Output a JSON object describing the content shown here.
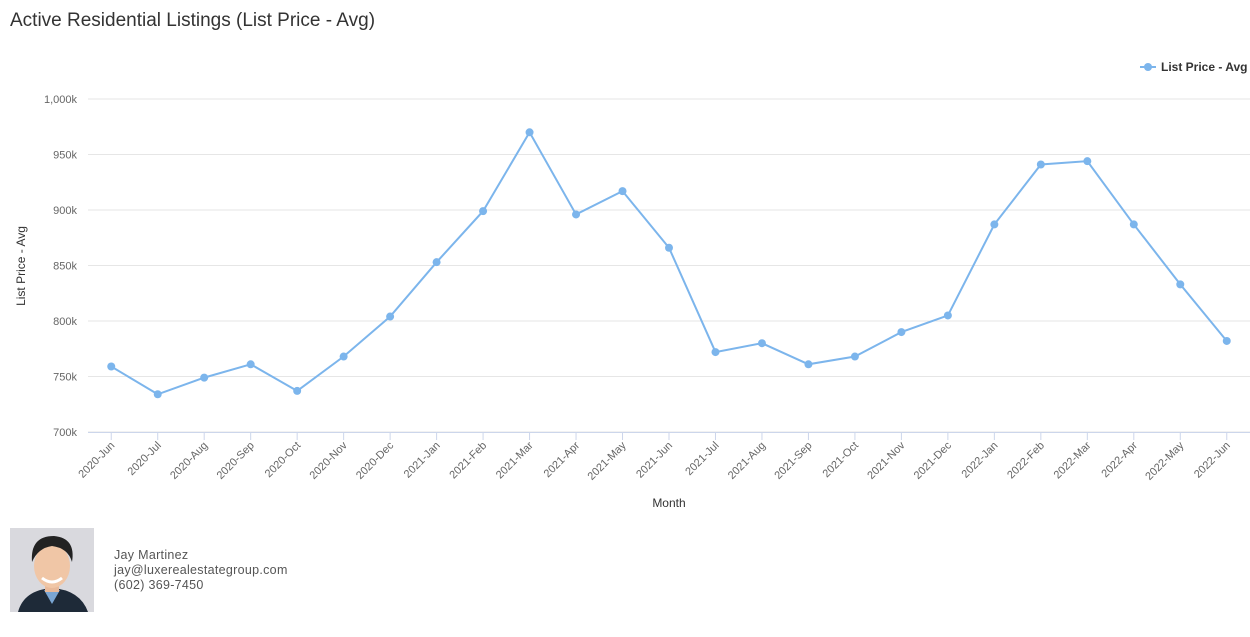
{
  "chart_data": {
    "type": "line",
    "title": "Active Residential Listings (List Price - Avg)",
    "xlabel": "Month",
    "ylabel": "List Price - Avg",
    "categories": [
      "2020-Jun",
      "2020-Jul",
      "2020-Aug",
      "2020-Sep",
      "2020-Oct",
      "2020-Nov",
      "2020-Dec",
      "2021-Jan",
      "2021-Feb",
      "2021-Mar",
      "2021-Apr",
      "2021-May",
      "2021-Jun",
      "2021-Jul",
      "2021-Aug",
      "2021-Sep",
      "2021-Oct",
      "2021-Nov",
      "2021-Dec",
      "2022-Jan",
      "2022-Feb",
      "2022-Mar",
      "2022-Apr",
      "2022-May",
      "2022-Jun"
    ],
    "series": [
      {
        "name": "List Price - Avg",
        "color": "#7cb5ec",
        "values": [
          759000,
          734000,
          749000,
          761000,
          737000,
          768000,
          804000,
          853000,
          899000,
          970000,
          896000,
          917000,
          866000,
          772000,
          780000,
          761000,
          768000,
          790000,
          805000,
          887000,
          941000,
          944000,
          887000,
          833000,
          782000
        ]
      }
    ],
    "ylim": [
      700000,
      1000000
    ],
    "yticks": [
      {
        "value": 700000,
        "label": "700k"
      },
      {
        "value": 750000,
        "label": "750k"
      },
      {
        "value": 800000,
        "label": "800k"
      },
      {
        "value": 850000,
        "label": "850k"
      },
      {
        "value": 900000,
        "label": "900k"
      },
      {
        "value": 950000,
        "label": "950k"
      },
      {
        "value": 1000000,
        "label": "1,000k"
      }
    ],
    "grid": true,
    "legend": "top-right"
  },
  "footer": {
    "name": "Jay Martinez",
    "email": "jay@luxerealestategroup.com",
    "phone": "(602) 369-7450"
  }
}
